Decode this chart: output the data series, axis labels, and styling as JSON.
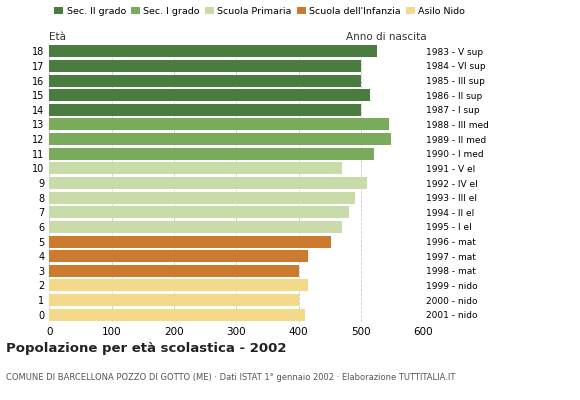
{
  "ages": [
    18,
    17,
    16,
    15,
    14,
    13,
    12,
    11,
    10,
    9,
    8,
    7,
    6,
    5,
    4,
    3,
    2,
    1,
    0
  ],
  "values": [
    525,
    500,
    500,
    515,
    500,
    545,
    548,
    520,
    470,
    510,
    490,
    480,
    470,
    452,
    415,
    400,
    415,
    400,
    410
  ],
  "right_labels": [
    "1983 - V sup",
    "1984 - VI sup",
    "1985 - III sup",
    "1986 - II sup",
    "1987 - I sup",
    "1988 - III med",
    "1989 - II med",
    "1990 - I med",
    "1991 - V el",
    "1992 - IV el",
    "1993 - III el",
    "1994 - II el",
    "1995 - I el",
    "1996 - mat",
    "1997 - mat",
    "1998 - mat",
    "1999 - nido",
    "2000 - nido",
    "2001 - nido"
  ],
  "bar_colors": [
    "#4a7c3f",
    "#4a7c3f",
    "#4a7c3f",
    "#4a7c3f",
    "#4a7c3f",
    "#7aab5c",
    "#7aab5c",
    "#7aab5c",
    "#c8dba8",
    "#c8dba8",
    "#c8dba8",
    "#c8dba8",
    "#c8dba8",
    "#cc7a2e",
    "#cc7a2e",
    "#cc7a2e",
    "#f5d98a",
    "#f5d98a",
    "#f5d98a"
  ],
  "legend_labels": [
    "Sec. II grado",
    "Sec. I grado",
    "Scuola Primaria",
    "Scuola dell'Infanzia",
    "Asilo Nido"
  ],
  "legend_colors": [
    "#4a7c3f",
    "#7aab5c",
    "#c8dba8",
    "#cc7a2e",
    "#f5d98a"
  ],
  "title": "Popolazione per età scolastica - 2002",
  "subtitle": "COMUNE DI BARCELLONA POZZO DI GOTTO (ME) · Dati ISTAT 1° gennaio 2002 · Elaborazione TUTTITALIA.IT",
  "label_left": "Età",
  "label_right": "Anno di nascita",
  "xlim": [
    0,
    600
  ],
  "xticks": [
    0,
    100,
    200,
    300,
    400,
    500,
    600
  ],
  "background_color": "#ffffff",
  "grid_color": "#cccccc"
}
